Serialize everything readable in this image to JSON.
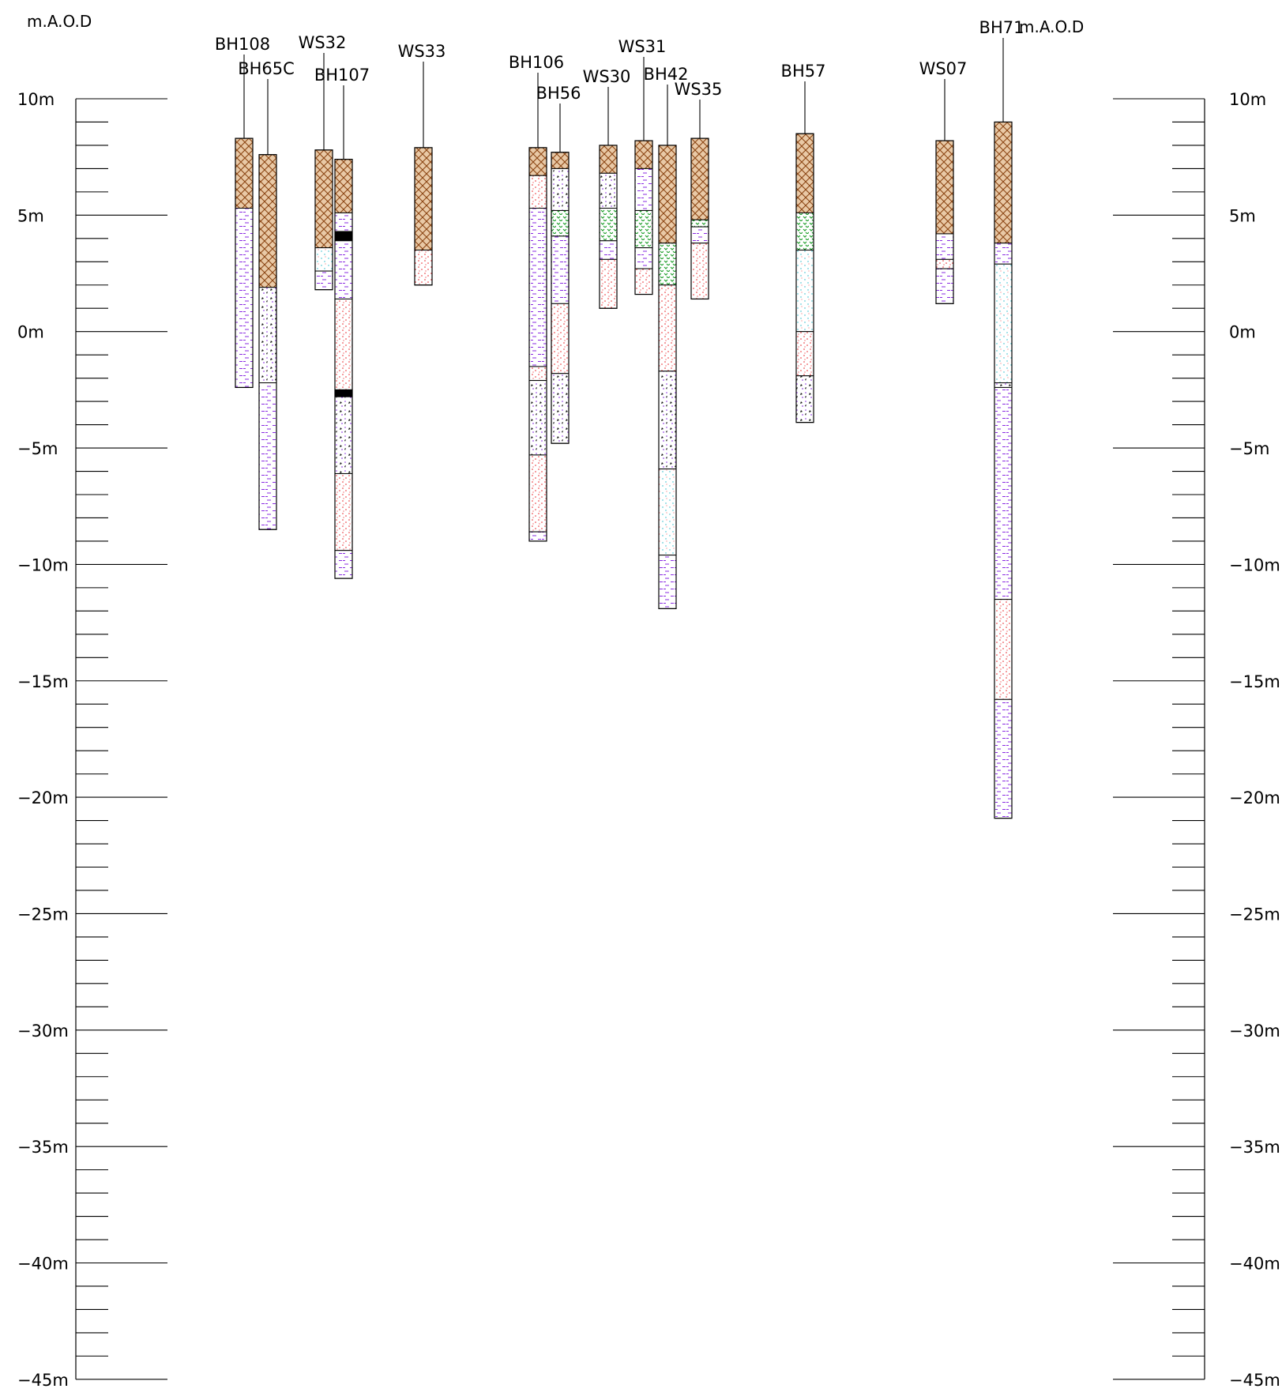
{
  "diagram": {
    "left_axis_title": "m.A.O.D",
    "right_axis_title": "m.A.O.D",
    "major_ticks": [
      {
        "value": 10,
        "label": "10m"
      },
      {
        "value": 5,
        "label": "5m"
      },
      {
        "value": 0,
        "label": "0m"
      },
      {
        "value": -5,
        "label": "−5m"
      },
      {
        "value": -10,
        "label": "−10m"
      },
      {
        "value": -15,
        "label": "−15m"
      },
      {
        "value": -20,
        "label": "−20m"
      },
      {
        "value": -25,
        "label": "−25m"
      },
      {
        "value": -30,
        "label": "−30m"
      },
      {
        "value": -35,
        "label": "−35m"
      },
      {
        "value": -40,
        "label": "−40m"
      },
      {
        "value": -45,
        "label": "−45m"
      }
    ],
    "minor_tick_interval": 1,
    "axis_range": [
      -45,
      10
    ],
    "strata_colors": {
      "made_ground": "#8B4513",
      "clay": "#8A2BE2",
      "sand": "#E8262A",
      "silty_sand": "#1FB8C8",
      "gravel": "#111111",
      "peat": "#1E9E2A",
      "coal": "#000000"
    },
    "boreholes": [
      {
        "name": "BH108",
        "top": 8.3,
        "bottom": -2.4,
        "layers": [
          {
            "type": "made_ground",
            "top": 8.3,
            "bottom": 5.3
          },
          {
            "type": "clay",
            "top": 5.3,
            "bottom": -2.4
          }
        ]
      },
      {
        "name": "BH65C",
        "top": 7.6,
        "bottom": -8.5,
        "layers": [
          {
            "type": "made_ground",
            "top": 7.6,
            "bottom": 1.9
          },
          {
            "type": "gravel",
            "top": 1.9,
            "bottom": -2.2
          },
          {
            "type": "clay",
            "top": -2.2,
            "bottom": -8.5
          }
        ]
      },
      {
        "name": "WS32",
        "top": 7.8,
        "bottom": 1.8,
        "layers": [
          {
            "type": "made_ground",
            "top": 7.8,
            "bottom": 3.6
          },
          {
            "type": "silty_sand",
            "top": 3.6,
            "bottom": 2.6
          },
          {
            "type": "clay",
            "top": 2.6,
            "bottom": 1.8
          }
        ]
      },
      {
        "name": "BH107",
        "top": 7.4,
        "bottom": -10.6,
        "layers": [
          {
            "type": "made_ground",
            "top": 7.4,
            "bottom": 5.1
          },
          {
            "type": "clay",
            "top": 5.1,
            "bottom": 4.3
          },
          {
            "type": "coal",
            "top": 4.3,
            "bottom": 3.9
          },
          {
            "type": "clay",
            "top": 3.9,
            "bottom": 1.4
          },
          {
            "type": "sand",
            "top": 1.4,
            "bottom": -2.5
          },
          {
            "type": "coal",
            "top": -2.5,
            "bottom": -2.8
          },
          {
            "type": "gravel",
            "top": -2.8,
            "bottom": -6.1
          },
          {
            "type": "sand",
            "top": -6.1,
            "bottom": -9.4
          },
          {
            "type": "clay",
            "top": -9.4,
            "bottom": -10.6
          }
        ]
      },
      {
        "name": "WS33",
        "top": 7.9,
        "bottom": 2.0,
        "layers": [
          {
            "type": "made_ground",
            "top": 7.9,
            "bottom": 3.5
          },
          {
            "type": "sand",
            "top": 3.5,
            "bottom": 2.0
          }
        ]
      },
      {
        "name": "BH106",
        "top": 7.9,
        "bottom": -9.0,
        "layers": [
          {
            "type": "made_ground",
            "top": 7.9,
            "bottom": 6.7
          },
          {
            "type": "sand",
            "top": 6.7,
            "bottom": 5.3
          },
          {
            "type": "clay",
            "top": 5.3,
            "bottom": -1.5
          },
          {
            "type": "sand",
            "top": -1.5,
            "bottom": -2.1
          },
          {
            "type": "gravel",
            "top": -2.1,
            "bottom": -5.3
          },
          {
            "type": "sand",
            "top": -5.3,
            "bottom": -8.6
          },
          {
            "type": "clay",
            "top": -8.6,
            "bottom": -9.0
          }
        ]
      },
      {
        "name": "BH56",
        "top": 7.7,
        "bottom": -4.8,
        "layers": [
          {
            "type": "made_ground",
            "top": 7.7,
            "bottom": 7.0
          },
          {
            "type": "gravel",
            "top": 7.0,
            "bottom": 5.2
          },
          {
            "type": "peat",
            "top": 5.2,
            "bottom": 4.1
          },
          {
            "type": "clay",
            "top": 4.1,
            "bottom": 1.2
          },
          {
            "type": "sand",
            "top": 1.2,
            "bottom": -1.8
          },
          {
            "type": "gravel",
            "top": -1.8,
            "bottom": -4.8
          }
        ]
      },
      {
        "name": "WS30",
        "top": 8.0,
        "bottom": 1.0,
        "layers": [
          {
            "type": "made_ground",
            "top": 8.0,
            "bottom": 6.8
          },
          {
            "type": "gravel",
            "top": 6.8,
            "bottom": 5.3
          },
          {
            "type": "peat",
            "top": 5.3,
            "bottom": 3.9
          },
          {
            "type": "clay",
            "top": 3.9,
            "bottom": 3.1
          },
          {
            "type": "sand",
            "top": 3.1,
            "bottom": 1.0
          }
        ]
      },
      {
        "name": "WS31",
        "top": 8.2,
        "bottom": 1.6,
        "layers": [
          {
            "type": "made_ground",
            "top": 8.2,
            "bottom": 7.0
          },
          {
            "type": "clay",
            "top": 7.0,
            "bottom": 5.2
          },
          {
            "type": "peat",
            "top": 5.2,
            "bottom": 3.6
          },
          {
            "type": "clay",
            "top": 3.6,
            "bottom": 2.7
          },
          {
            "type": "sand",
            "top": 2.7,
            "bottom": 1.6
          }
        ]
      },
      {
        "name": "BH42",
        "top": 8.0,
        "bottom": -11.9,
        "layers": [
          {
            "type": "made_ground",
            "top": 8.0,
            "bottom": 3.8
          },
          {
            "type": "peat",
            "top": 3.8,
            "bottom": 2.0
          },
          {
            "type": "sand",
            "top": 2.0,
            "bottom": -1.7
          },
          {
            "type": "gravel",
            "top": -1.7,
            "bottom": -5.9
          },
          {
            "type": "silty_sand",
            "top": -5.9,
            "bottom": -9.6
          },
          {
            "type": "clay",
            "top": -9.6,
            "bottom": -11.9
          }
        ]
      },
      {
        "name": "WS35",
        "top": 8.3,
        "bottom": 1.4,
        "layers": [
          {
            "type": "made_ground",
            "top": 8.3,
            "bottom": 4.8
          },
          {
            "type": "peat",
            "top": 4.8,
            "bottom": 4.5
          },
          {
            "type": "clay",
            "top": 4.5,
            "bottom": 3.8
          },
          {
            "type": "sand",
            "top": 3.8,
            "bottom": 1.4
          }
        ]
      },
      {
        "name": "BH57",
        "top": 8.5,
        "bottom": -3.9,
        "layers": [
          {
            "type": "made_ground",
            "top": 8.5,
            "bottom": 5.1
          },
          {
            "type": "peat",
            "top": 5.1,
            "bottom": 3.5
          },
          {
            "type": "silty_sand",
            "top": 3.5,
            "bottom": 0.0
          },
          {
            "type": "sand",
            "top": 0.0,
            "bottom": -1.9
          },
          {
            "type": "gravel",
            "top": -1.9,
            "bottom": -3.9
          }
        ]
      },
      {
        "name": "WS07",
        "top": 8.2,
        "bottom": 1.2,
        "layers": [
          {
            "type": "made_ground",
            "top": 8.2,
            "bottom": 4.2
          },
          {
            "type": "clay",
            "top": 4.2,
            "bottom": 3.1
          },
          {
            "type": "sand",
            "top": 3.1,
            "bottom": 2.7
          },
          {
            "type": "clay",
            "top": 2.7,
            "bottom": 1.2
          }
        ]
      },
      {
        "name": "BH71",
        "top": 9.0,
        "bottom": -20.9,
        "layers": [
          {
            "type": "made_ground",
            "top": 9.0,
            "bottom": 3.8
          },
          {
            "type": "clay",
            "top": 3.8,
            "bottom": 2.9
          },
          {
            "type": "silty_sand",
            "top": 2.9,
            "bottom": -2.2
          },
          {
            "type": "gravel",
            "top": -2.2,
            "bottom": -2.4
          },
          {
            "type": "clay",
            "top": -2.4,
            "bottom": -11.5
          },
          {
            "type": "sand",
            "top": -11.5,
            "bottom": -15.8
          },
          {
            "type": "clay",
            "top": -15.8,
            "bottom": -20.9
          }
        ]
      }
    ]
  }
}
